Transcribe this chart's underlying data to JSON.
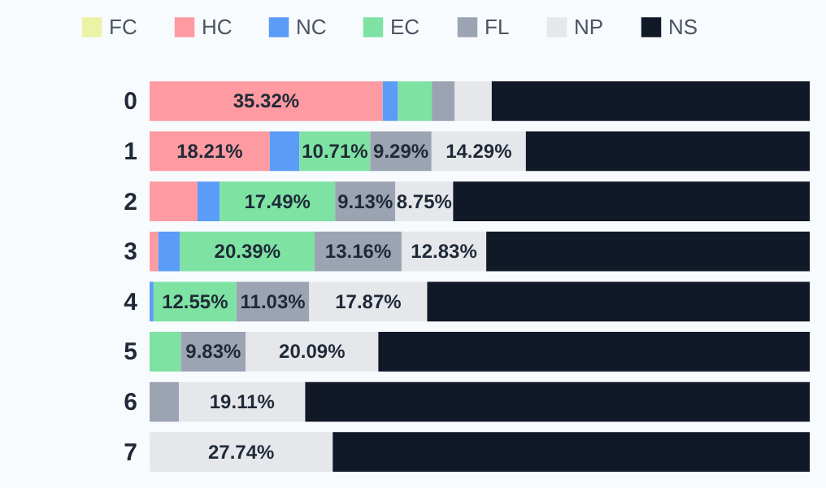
{
  "chart_data": {
    "type": "bar",
    "orientation": "horizontal",
    "stacked": true,
    "legend": "top left",
    "categories": [
      "0",
      "1",
      "2",
      "3",
      "4",
      "5",
      "6",
      "7"
    ],
    "series": [
      {
        "name": "FC",
        "color": "#eaf3a6",
        "values": [
          0,
          0,
          0,
          0,
          0,
          0,
          0,
          0
        ],
        "value_labels": [
          null,
          null,
          null,
          null,
          null,
          null,
          null,
          null
        ]
      },
      {
        "name": "HC",
        "color": "#fd9aa2",
        "values": [
          35.32,
          18.21,
          7.26,
          1.32,
          0,
          0,
          0,
          0
        ],
        "value_labels": [
          "35.32%",
          "18.21%",
          null,
          null,
          null,
          null,
          null,
          null
        ]
      },
      {
        "name": "NC",
        "color": "#5b9cf8",
        "values": [
          2.31,
          4.5,
          3.35,
          3.3,
          0.6,
          0,
          0,
          0
        ],
        "value_labels": [
          null,
          null,
          null,
          null,
          null,
          null,
          null,
          null
        ]
      },
      {
        "name": "EC",
        "color": "#7ee2a3",
        "values": [
          5.12,
          10.71,
          17.49,
          20.39,
          12.55,
          4.73,
          0,
          0
        ],
        "value_labels": [
          null,
          "10.71%",
          "17.49%",
          "20.39%",
          "12.55%",
          null,
          null,
          null
        ]
      },
      {
        "name": "FL",
        "color": "#9ca3b2",
        "values": [
          3.47,
          9.29,
          9.13,
          13.16,
          11.03,
          9.83,
          4.46,
          0
        ],
        "value_labels": [
          null,
          "9.29%",
          "9.13%",
          "13.16%",
          "11.03%",
          "9.83%",
          null,
          null
        ]
      },
      {
        "name": "NP",
        "color": "#e6e7eb",
        "values": [
          5.61,
          14.29,
          8.75,
          12.83,
          17.87,
          20.09,
          19.11,
          27.74
        ],
        "value_labels": [
          null,
          "14.29%",
          "8.75%",
          "12.83%",
          "17.87%",
          "20.09%",
          "19.11%",
          "27.74%"
        ]
      },
      {
        "name": "NS",
        "color": "#111827",
        "values": [
          48.17,
          43.0,
          54.02,
          49.0,
          57.95,
          65.35,
          76.43,
          72.26
        ],
        "value_labels": [
          null,
          null,
          null,
          null,
          null,
          null,
          null,
          null
        ]
      }
    ]
  }
}
